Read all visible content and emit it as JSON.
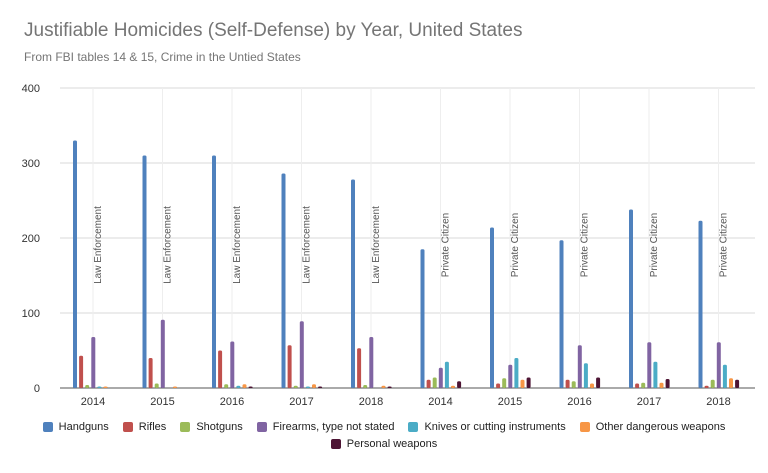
{
  "chart_data": {
    "type": "bar",
    "title": "Justifiable Homicides (Self-Defense) by Year, United States",
    "subtitle": "From FBI tables 14 & 15, Crime in the Untied States",
    "categories": [
      "2014",
      "2015",
      "2016",
      "2017",
      "2018",
      "2014",
      "2015",
      "2016",
      "2017",
      "2018"
    ],
    "group_labels": [
      "Law Enforcement",
      "Law Enforcement",
      "Law Enforcement",
      "Law Enforcement",
      "Law Enforcement",
      "Private Citizen",
      "Private Citizen",
      "Private Citizen",
      "Private Citizen",
      "Private Citizen"
    ],
    "ylim": [
      0,
      400
    ],
    "yticks": [
      0,
      100,
      200,
      300,
      400
    ],
    "grid": true,
    "legend": "bottom",
    "series": [
      {
        "name": "Handguns",
        "color": "#4f81bd",
        "values": [
          330,
          310,
          310,
          286,
          278,
          185,
          214,
          197,
          238,
          223
        ]
      },
      {
        "name": "Rifles",
        "color": "#c0504d",
        "values": [
          43,
          40,
          50,
          57,
          53,
          11,
          6,
          11,
          6,
          3
        ]
      },
      {
        "name": "Shotguns",
        "color": "#9bbb59",
        "values": [
          4,
          6,
          5,
          3,
          4,
          14,
          13,
          9,
          7,
          11
        ]
      },
      {
        "name": "Firearms, type not stated",
        "color": "#8064a2",
        "values": [
          68,
          91,
          62,
          89,
          68,
          27,
          31,
          57,
          61,
          61
        ]
      },
      {
        "name": "Knives or cutting instruments",
        "color": "#4bacc6",
        "values": [
          1,
          0,
          3,
          1,
          0,
          35,
          40,
          33,
          35,
          31
        ]
      },
      {
        "name": "Other dangerous weapons",
        "color": "#f79646",
        "values": [
          1,
          1,
          5,
          5,
          3,
          3,
          11,
          6,
          7,
          13
        ]
      },
      {
        "name": "Personal weapons",
        "color": "#4d1434",
        "values": [
          0,
          0,
          2,
          2,
          2,
          9,
          14,
          14,
          12,
          11
        ]
      }
    ]
  }
}
